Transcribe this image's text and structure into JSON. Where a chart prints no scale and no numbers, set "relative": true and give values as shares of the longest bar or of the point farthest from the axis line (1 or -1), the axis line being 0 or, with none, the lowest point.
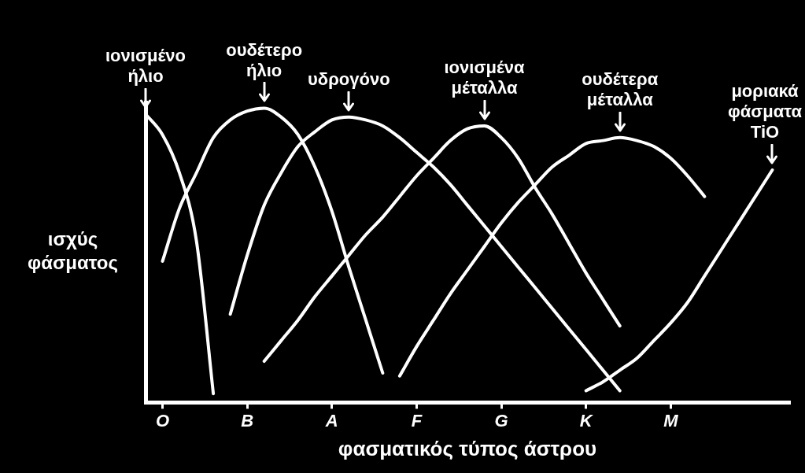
{
  "chart_data": {
    "type": "line",
    "relative": true,
    "xlabel": "φασματικός τύπος άστρου",
    "ylabel": "ισχύς φάσματος",
    "legend": false,
    "grid": false,
    "marker": "none",
    "line_style": "solid",
    "categories": [
      null,
      "O",
      null,
      null,
      null,
      null,
      "B",
      null,
      null,
      null,
      null,
      "A",
      null,
      null,
      null,
      null,
      "F",
      null,
      null,
      null,
      null,
      "G",
      null,
      null,
      null,
      null,
      "K",
      null,
      null,
      null,
      null,
      "M",
      null,
      null,
      null,
      null,
      null,
      null,
      null
    ],
    "series": [
      {
        "name": "ιονισμένο ήλιο",
        "color": "#ffffff",
        "values": [
          0.98,
          0.91,
          0.78,
          0.55,
          0.03,
          null,
          null,
          null,
          null,
          null,
          null,
          null,
          null,
          null,
          null,
          null,
          null,
          null,
          null,
          null,
          null,
          null,
          null,
          null,
          null,
          null,
          null,
          null,
          null,
          null,
          null,
          null,
          null,
          null,
          null,
          null,
          null,
          null,
          null
        ]
      },
      {
        "name": "ουδέτερο ήλιο",
        "color": "#ffffff",
        "values": [
          null,
          0.48,
          0.66,
          0.78,
          0.9,
          0.96,
          0.99,
          1,
          0.97,
          0.91,
          0.8,
          0.65,
          0.46,
          0.28,
          0.1,
          null,
          null,
          null,
          null,
          null,
          null,
          null,
          null,
          null,
          null,
          null,
          null,
          null,
          null,
          null,
          null,
          null,
          null,
          null,
          null,
          null,
          null,
          null,
          null
        ]
      },
      {
        "name": "υδρογόνο",
        "color": "#ffffff",
        "values": [
          null,
          null,
          null,
          null,
          null,
          0.3,
          0.5,
          0.67,
          0.78,
          0.87,
          0.92,
          0.96,
          0.97,
          0.96,
          0.94,
          0.9,
          0.85,
          0.8,
          0.74,
          0.67,
          0.6,
          0.53,
          0.46,
          0.39,
          0.32,
          0.25,
          0.18,
          0.11,
          0.04,
          null,
          null,
          null,
          null,
          null,
          null,
          null,
          null,
          null,
          null
        ]
      },
      {
        "name": "ιονισμένα μέταλλα",
        "color": "#ffffff",
        "values": [
          null,
          null,
          null,
          null,
          null,
          null,
          null,
          0.14,
          0.21,
          0.28,
          0.36,
          0.43,
          0.5,
          0.57,
          0.63,
          0.7,
          0.77,
          0.83,
          0.89,
          0.93,
          0.94,
          0.9,
          0.83,
          0.73,
          0.64,
          0.54,
          0.44,
          0.35,
          0.26,
          null,
          null,
          null,
          null,
          null,
          null,
          null,
          null,
          null,
          null
        ]
      },
      {
        "name": "ουδέτερα μέταλλα",
        "color": "#ffffff",
        "values": [
          null,
          null,
          null,
          null,
          null,
          null,
          null,
          null,
          null,
          null,
          null,
          null,
          null,
          null,
          null,
          0.09,
          0.19,
          0.28,
          0.37,
          0.45,
          0.53,
          0.61,
          0.68,
          0.74,
          0.8,
          0.84,
          0.88,
          0.89,
          0.9,
          0.89,
          0.87,
          0.83,
          0.77,
          0.7,
          null,
          null,
          null,
          null,
          null
        ]
      },
      {
        "name": "μοριακά φάσματα TiO",
        "color": "#ffffff",
        "values": [
          null,
          null,
          null,
          null,
          null,
          null,
          null,
          null,
          null,
          null,
          null,
          null,
          null,
          null,
          null,
          null,
          null,
          null,
          null,
          null,
          null,
          null,
          null,
          null,
          null,
          null,
          0.04,
          0.07,
          0.11,
          0.15,
          0.21,
          0.27,
          0.34,
          0.43,
          0.52,
          0.61,
          0.7,
          0.79,
          null
        ]
      }
    ]
  }
}
